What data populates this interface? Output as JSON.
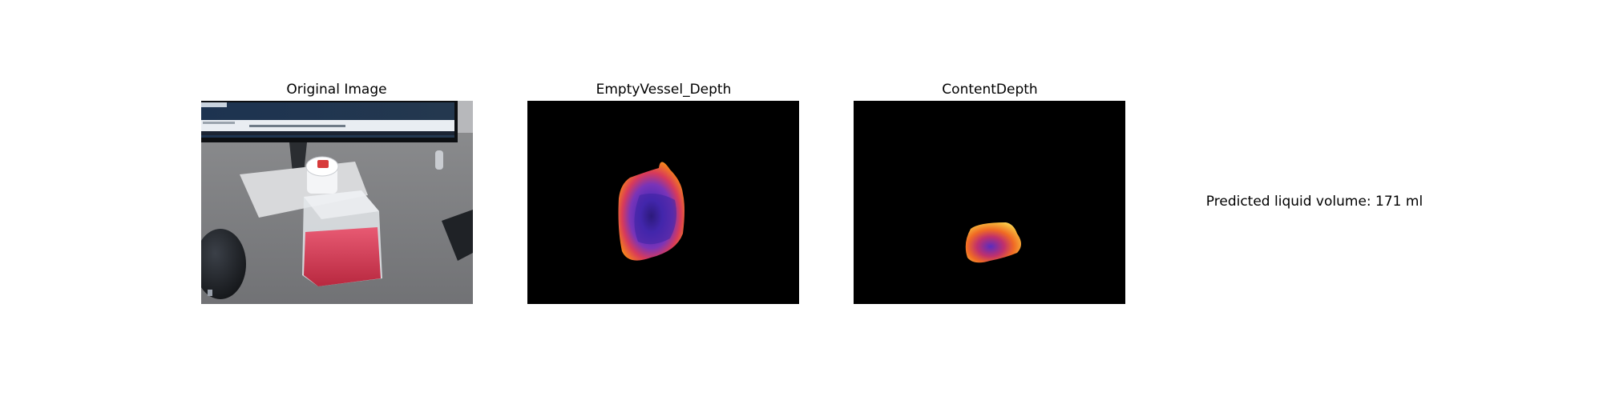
{
  "panels": [
    {
      "title": "Original Image"
    },
    {
      "title": "EmptyVessel_Depth"
    },
    {
      "title": "ContentDepth"
    }
  ],
  "result": {
    "text": "Predicted liquid volume: 171 ml"
  },
  "colors": {
    "background": "#ffffff",
    "depth_background": "#000000",
    "depth_colormap": [
      "#2a1a8c",
      "#5a2fc0",
      "#d0306a",
      "#f07020",
      "#ffd84a"
    ],
    "liquid": "#d63a55"
  }
}
